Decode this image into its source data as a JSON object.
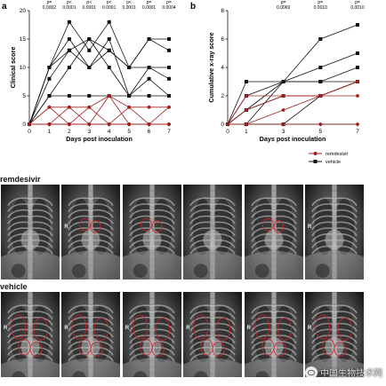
{
  "panel_a": {
    "label": "a"
  },
  "panel_b": {
    "label": "b"
  },
  "legend": {
    "items": [
      {
        "name": "remdesivir",
        "color": "#a0201e",
        "marker": "circle"
      },
      {
        "name": "vehicle",
        "color": "#111111",
        "marker": "square"
      }
    ]
  },
  "chart_data": [
    {
      "type": "line",
      "id": "clinical",
      "xlabel": "Days post inoculation",
      "ylabel": "Clinical score",
      "x": [
        0,
        1,
        2,
        3,
        4,
        5,
        6,
        7
      ],
      "xticks": [
        "0",
        "1",
        "2",
        "3",
        "4",
        "5",
        "6",
        "7"
      ],
      "yticks": [
        "0",
        "5",
        "10",
        "15",
        "20"
      ],
      "ylim": [
        0,
        20
      ],
      "pvalues": [
        {
          "day": 1,
          "line1": "p=",
          "line2": "0.0002"
        },
        {
          "day": 2,
          "line1": "p<",
          "line2": "0.0001"
        },
        {
          "day": 3,
          "line1": "p<",
          "line2": "0.0001"
        },
        {
          "day": 4,
          "line1": "p<",
          "line2": "0.0001"
        },
        {
          "day": 5,
          "line1": "p<",
          "line2": "0.0001"
        },
        {
          "day": 6,
          "line1": "p=",
          "line2": "0.0001"
        },
        {
          "day": 7,
          "line1": "p=",
          "line2": "0.0004"
        }
      ],
      "series": [
        {
          "group": "vehicle",
          "values": [
            0,
            10,
            18,
            13,
            18,
            10,
            15,
            15
          ]
        },
        {
          "group": "vehicle",
          "values": [
            0,
            10,
            15,
            10,
            15,
            5,
            10,
            10
          ]
        },
        {
          "group": "vehicle",
          "values": [
            0,
            8,
            13,
            15,
            13,
            10,
            10,
            8
          ]
        },
        {
          "group": "vehicle",
          "values": [
            0,
            5,
            10,
            15,
            10,
            5,
            8,
            5
          ]
        },
        {
          "group": "vehicle",
          "values": [
            0,
            5,
            5,
            5,
            5,
            5,
            5,
            5
          ]
        },
        {
          "group": "vehicle",
          "values": [
            0,
            10,
            13,
            10,
            13,
            10,
            15,
            13
          ]
        },
        {
          "group": "remdesivir",
          "values": [
            0,
            3,
            3,
            3,
            5,
            3,
            3,
            3
          ]
        },
        {
          "group": "remdesivir",
          "values": [
            0,
            3,
            0,
            0,
            5,
            0,
            0,
            3
          ]
        },
        {
          "group": "remdesivir",
          "values": [
            0,
            0,
            3,
            0,
            0,
            0,
            0,
            0
          ]
        },
        {
          "group": "remdesivir",
          "values": [
            0,
            0,
            0,
            0,
            0,
            0,
            0,
            0
          ]
        },
        {
          "group": "remdesivir",
          "values": [
            0,
            0,
            0,
            0,
            0,
            3,
            0,
            0
          ]
        },
        {
          "group": "remdesivir",
          "values": [
            0,
            0,
            0,
            3,
            0,
            0,
            0,
            0
          ]
        }
      ]
    },
    {
      "type": "line",
      "id": "xray",
      "xlabel": "Days post inoculation",
      "ylabel": "Cumulative x-ray score",
      "x": [
        0,
        1,
        3,
        5,
        7
      ],
      "xticks": [
        "0",
        "1",
        "3",
        "5",
        "7"
      ],
      "yticks": [
        "0",
        "2",
        "4",
        "6",
        "8"
      ],
      "ylim": [
        0,
        8
      ],
      "pvalues": [
        {
          "day": 3,
          "line1": "p=",
          "line2": "0.0069"
        },
        {
          "day": 5,
          "line1": "p=",
          "line2": "0.0010"
        },
        {
          "day": 7,
          "line1": "p=",
          "line2": "0.0010"
        }
      ],
      "series": [
        {
          "group": "vehicle",
          "values": [
            0,
            0,
            3,
            6,
            7
          ]
        },
        {
          "group": "vehicle",
          "values": [
            0,
            1,
            3,
            4,
            5
          ]
        },
        {
          "group": "vehicle",
          "values": [
            0,
            3,
            3,
            3,
            4
          ]
        },
        {
          "group": "vehicle",
          "values": [
            0,
            2,
            3,
            3,
            3
          ]
        },
        {
          "group": "vehicle",
          "values": [
            0,
            1,
            2,
            2,
            3
          ]
        },
        {
          "group": "vehicle",
          "values": [
            0,
            0,
            0,
            2,
            3
          ]
        },
        {
          "group": "remdesivir",
          "values": [
            0,
            2,
            2,
            2,
            3
          ]
        },
        {
          "group": "remdesivir",
          "values": [
            0,
            1,
            2,
            2,
            2
          ]
        },
        {
          "group": "remdesivir",
          "values": [
            0,
            0,
            1,
            2,
            3
          ]
        },
        {
          "group": "remdesivir",
          "values": [
            0,
            0,
            0,
            0,
            0
          ]
        }
      ]
    }
  ],
  "xray_rows": [
    {
      "label": "remdesivir",
      "panels": [
        {
          "r": ""
        },
        {
          "r": "R"
        },
        {
          "r": ""
        },
        {
          "r": ""
        },
        {
          "r": ""
        },
        {
          "r": "R"
        }
      ]
    },
    {
      "label": "vehicle",
      "panels": [
        {
          "r": "R"
        },
        {
          "r": "R"
        },
        {
          "r": "R"
        },
        {
          "r": "R"
        },
        {
          "r": "R"
        },
        {
          "r": "R"
        }
      ]
    }
  ],
  "watermark": {
    "text": "中国生物技术网"
  }
}
